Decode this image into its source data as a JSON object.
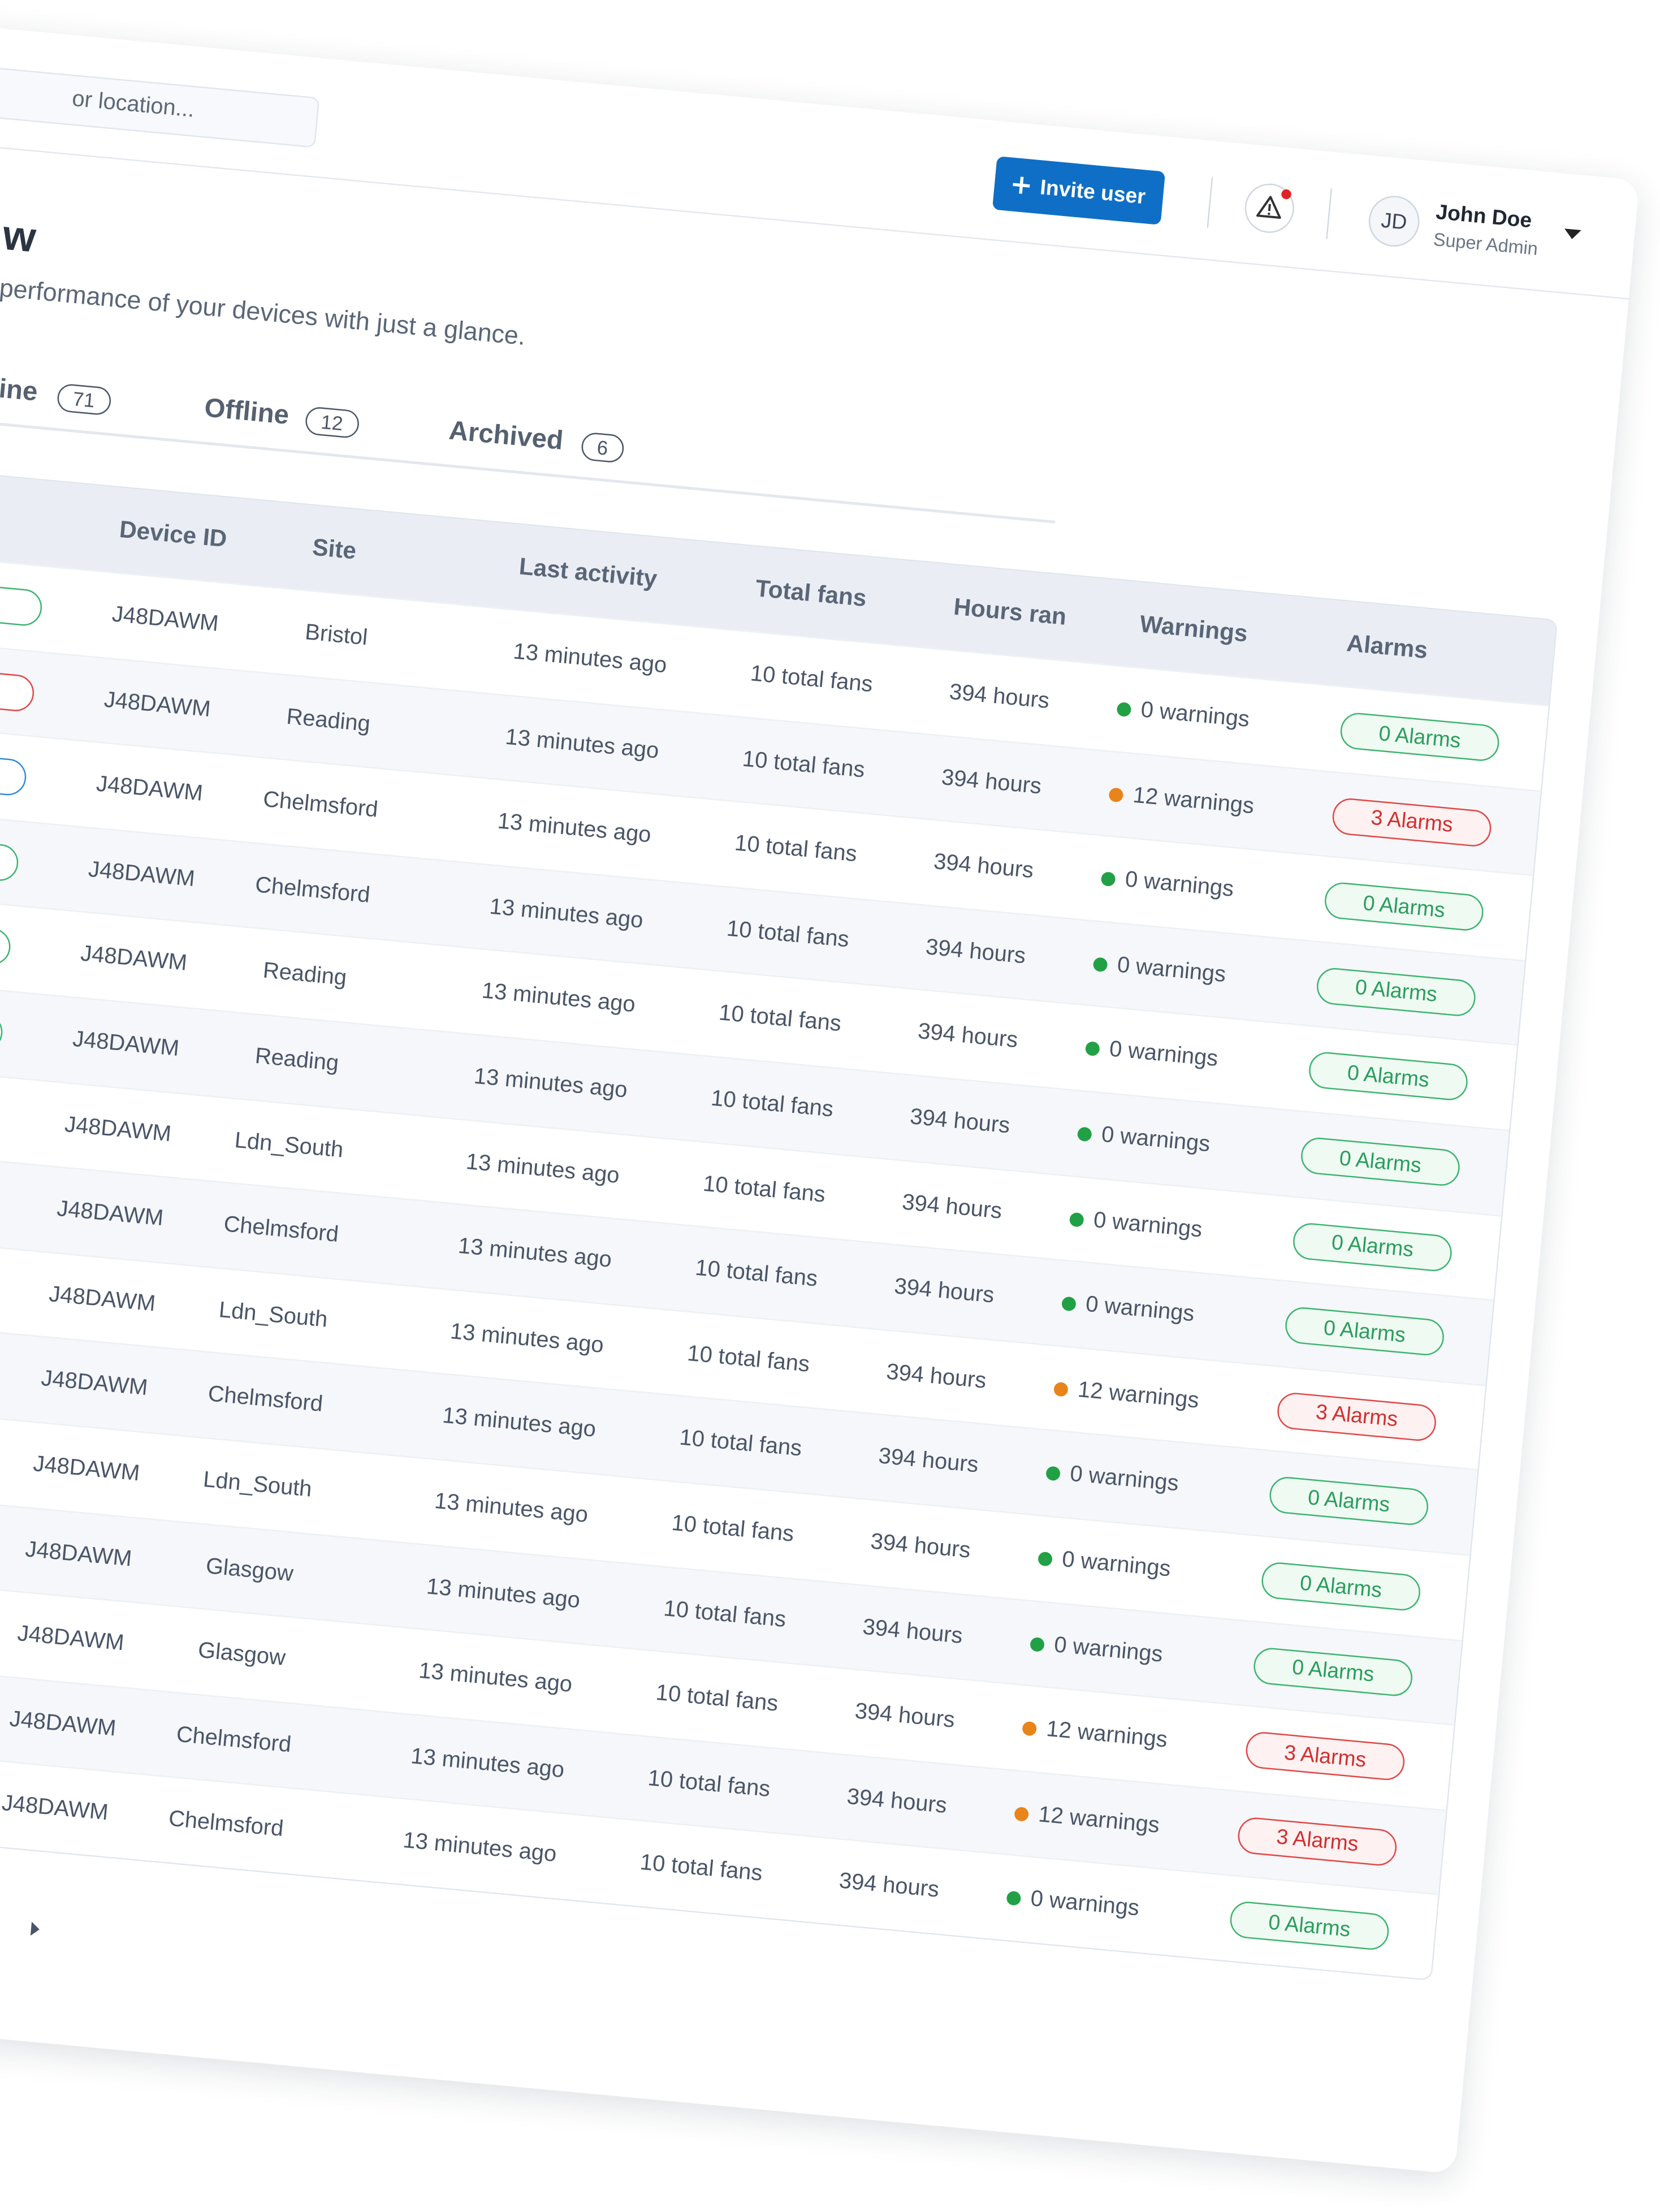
{
  "header": {
    "search_placeholder": "or location...",
    "invite_button": "Invite user",
    "user": {
      "initials": "JD",
      "name": "John Doe",
      "role": "Super Admin"
    }
  },
  "page": {
    "title": "w",
    "subtitle": "performance of your devices with just a glance.",
    "tabs": [
      {
        "label": "line",
        "count": 71
      },
      {
        "label": "Offline",
        "count": 12
      },
      {
        "label": "Archived",
        "count": 6
      }
    ]
  },
  "table": {
    "columns": [
      "Device ID",
      "Site",
      "Last activity",
      "Total fans",
      "Hours ran",
      "Warnings",
      "Alarms"
    ],
    "rows": [
      [
        "J48DAWM",
        "Bristol",
        "13 minutes ago",
        "10 total fans",
        "394 hours",
        "0 warnings",
        "0 Alarms"
      ],
      [
        "J48DAWM",
        "Reading",
        "13 minutes ago",
        "10 total fans",
        "394 hours",
        "12 warnings",
        "3 Alarms"
      ],
      [
        "J48DAWM",
        "Chelmsford",
        "13 minutes ago",
        "10 total fans",
        "394 hours",
        "0 warnings",
        "0 Alarms"
      ],
      [
        "J48DAWM",
        "Chelmsford",
        "13 minutes ago",
        "10 total fans",
        "394 hours",
        "0 warnings",
        "0 Alarms"
      ],
      [
        "J48DAWM",
        "Reading",
        "13 minutes ago",
        "10 total fans",
        "394 hours",
        "0 warnings",
        "0 Alarms"
      ],
      [
        "J48DAWM",
        "Reading",
        "13 minutes ago",
        "10 total fans",
        "394 hours",
        "0 warnings",
        "0 Alarms"
      ],
      [
        "J48DAWM",
        "Ldn_South",
        "13 minutes ago",
        "10 total fans",
        "394 hours",
        "0 warnings",
        "0 Alarms"
      ],
      [
        "J48DAWM",
        "Chelmsford",
        "13 minutes ago",
        "10 total fans",
        "394 hours",
        "0 warnings",
        "0 Alarms"
      ],
      [
        "J48DAWM",
        "Ldn_South",
        "13 minutes ago",
        "10 total fans",
        "394 hours",
        "12 warnings",
        "3 Alarms"
      ],
      [
        "J48DAWM",
        "Chelmsford",
        "13 minutes ago",
        "10 total fans",
        "394 hours",
        "0 warnings",
        "0 Alarms"
      ],
      [
        "J48DAWM",
        "Ldn_South",
        "13 minutes ago",
        "10 total fans",
        "394 hours",
        "0 warnings",
        "0 Alarms"
      ],
      [
        "J48DAWM",
        "Glasgow",
        "13 minutes ago",
        "10 total fans",
        "394 hours",
        "0 warnings",
        "0 Alarms"
      ],
      [
        "J48DAWM",
        "Glasgow",
        "13 minutes ago",
        "10 total fans",
        "394 hours",
        "12 warnings",
        "3 Alarms"
      ],
      [
        "J48DAWM",
        "Chelmsford",
        "13 minutes ago",
        "10 total fans",
        "394 hours",
        "12 warnings",
        "3 Alarms"
      ],
      [
        "J48DAWM",
        "Chelmsford",
        "13 minutes ago",
        "10 total fans",
        "394 hours",
        "0 warnings",
        "0 Alarms"
      ]
    ]
  }
}
